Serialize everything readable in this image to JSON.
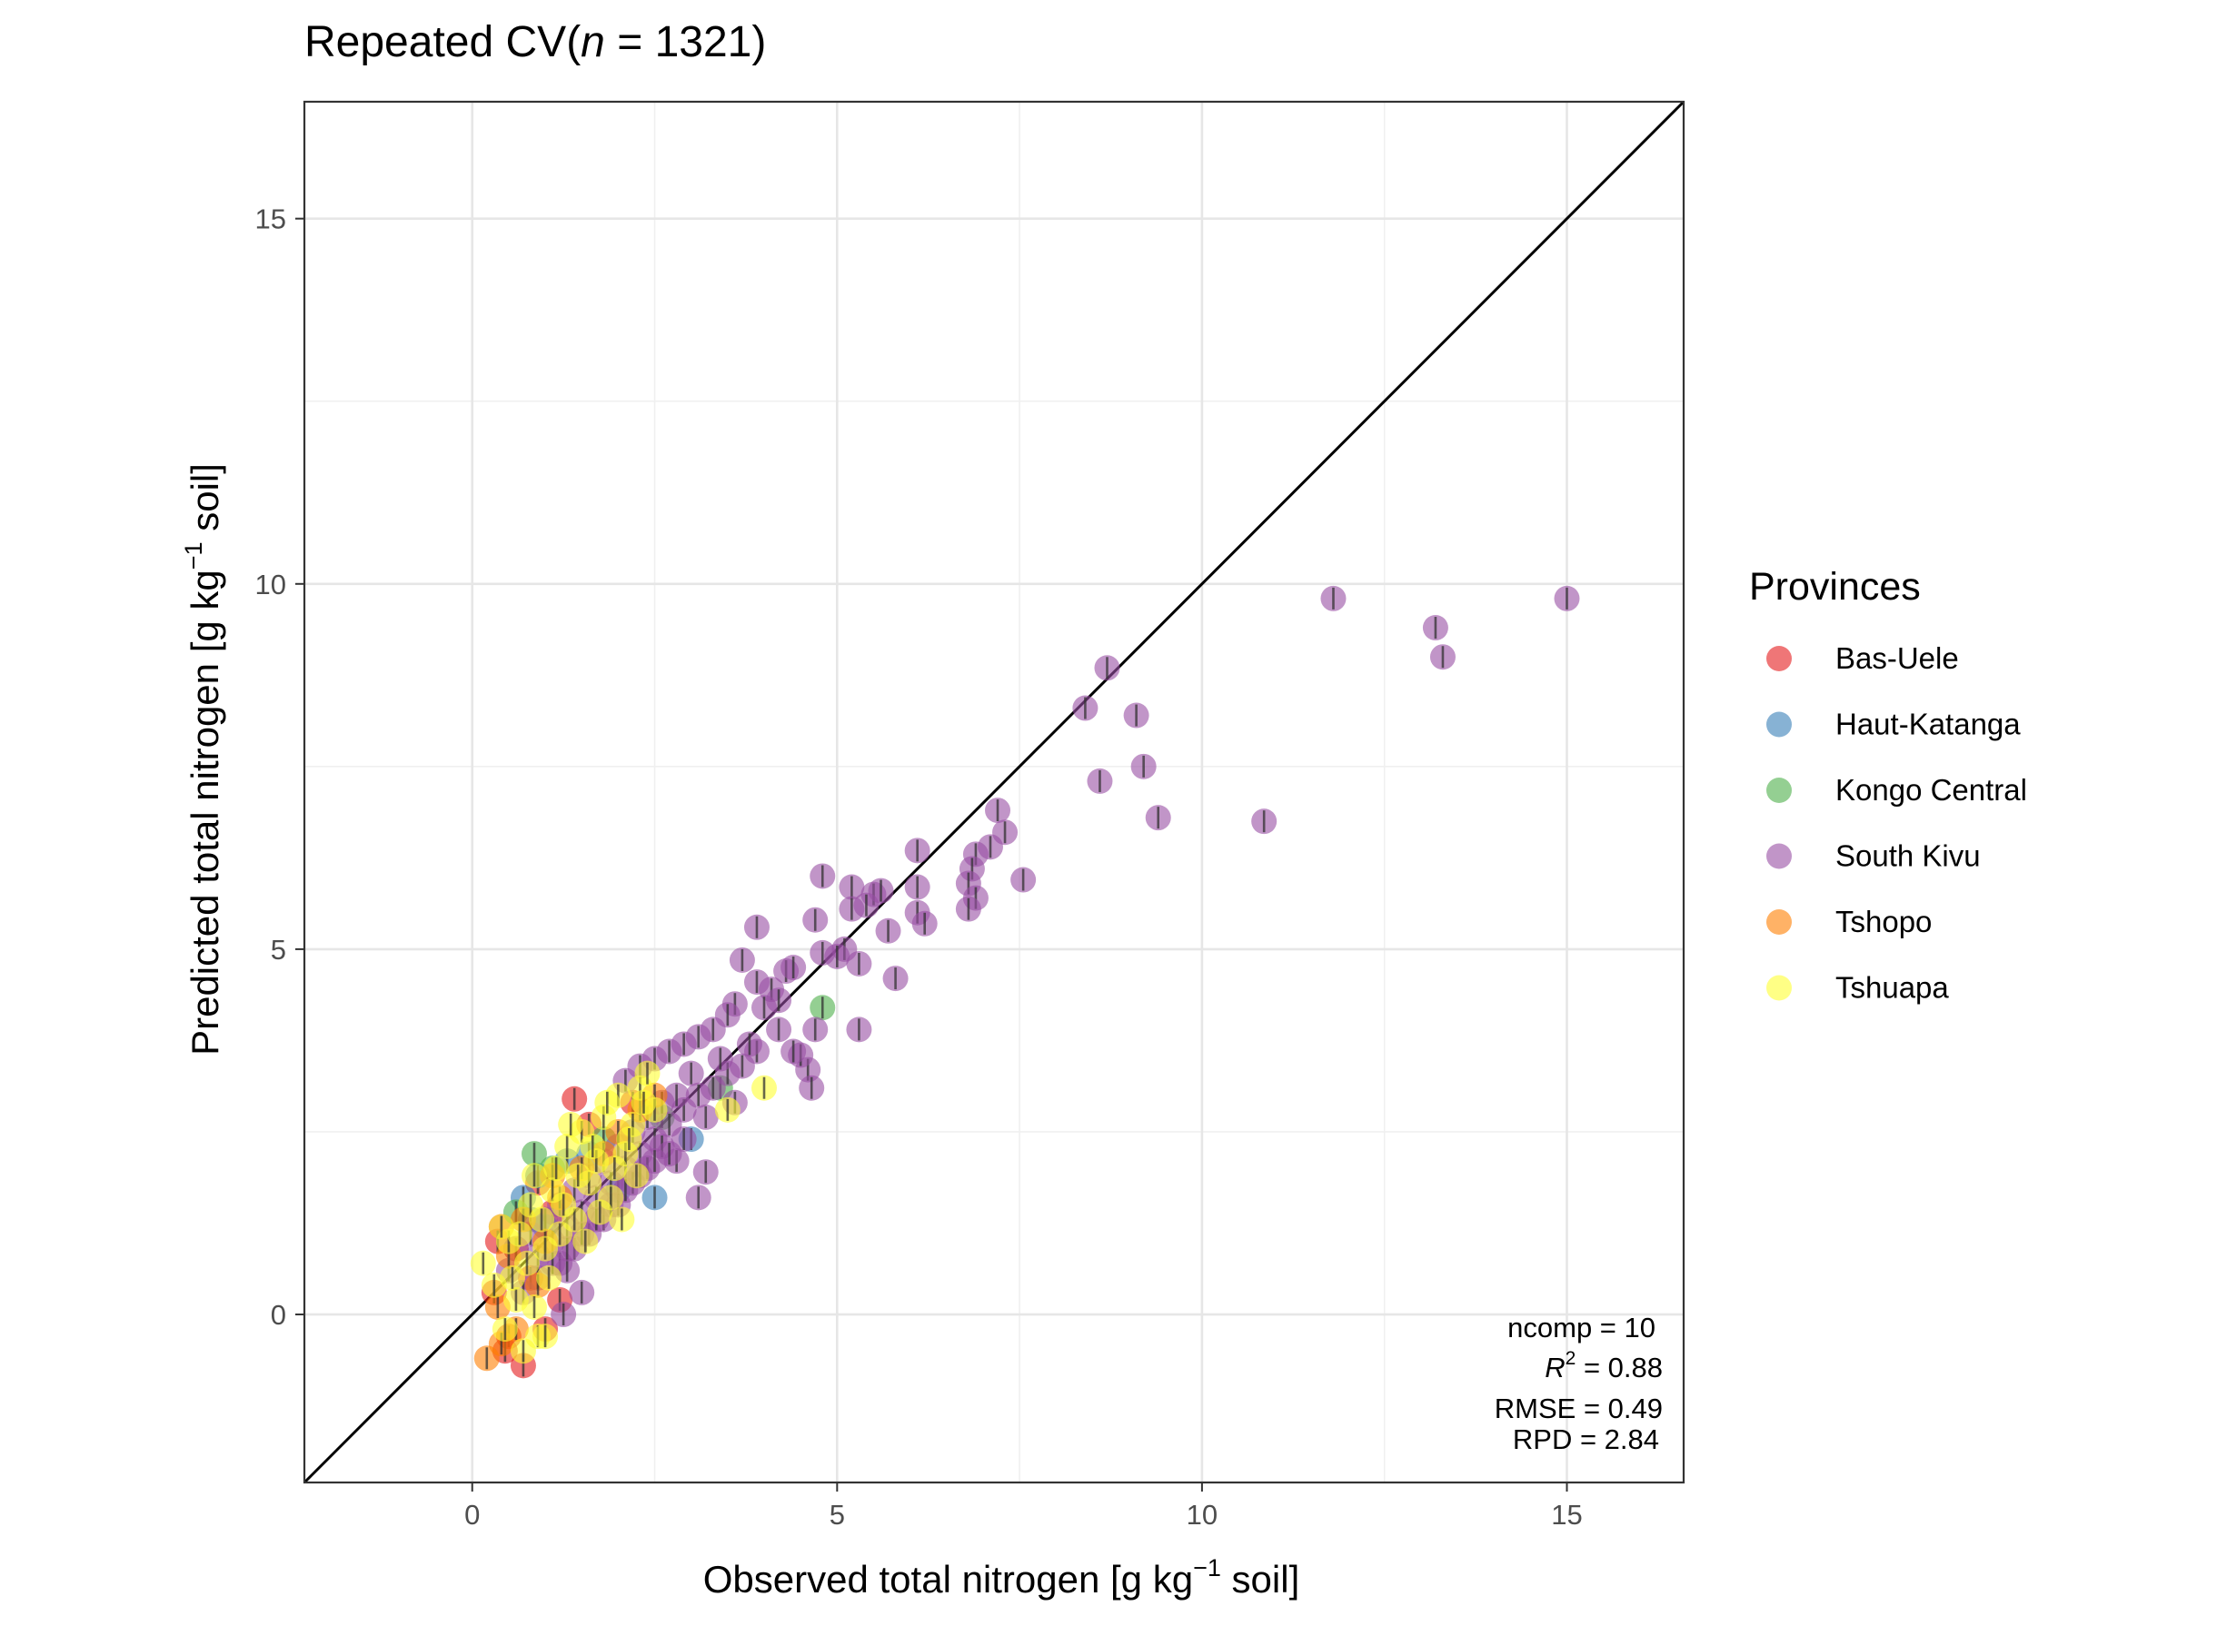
{
  "chart_data": {
    "type": "scatter",
    "title": "Repeated CV",
    "title_suffix_italic": "n",
    "title_suffix_rest": " = 1321)",
    "xlabel_pre": "Observed total nitrogen [g kg",
    "xlabel_sup": "−1",
    "xlabel_post": " soil]",
    "ylabel_pre": "Predicted total nitrogen [g kg",
    "ylabel_sup": "−1",
    "ylabel_post": " soil]",
    "xlim": [
      -2.3,
      16.6
    ],
    "ylim": [
      -2.3,
      16.6
    ],
    "x_ticks": [
      0,
      5,
      10,
      15
    ],
    "y_ticks": [
      0,
      5,
      10,
      15
    ],
    "x_tick_labels": [
      "0",
      "5",
      "10",
      "15"
    ],
    "y_tick_labels": [
      "0",
      "5",
      "10",
      "15"
    ],
    "grid": true,
    "reference_line": "y = x",
    "legend_title": "Provinces",
    "legend_position": "right",
    "stats": {
      "ncomp": "ncomp = 10",
      "r2_label": "R",
      "r2_sup": "2",
      "r2_value": " = 0.88",
      "rmse": "RMSE = 0.49",
      "rpd": "RPD = 2.84"
    },
    "series": [
      {
        "name": "Bas-Uele",
        "color": "#E41A1C",
        "points": [
          [
            1.4,
            2.95
          ],
          [
            0.7,
            -0.7
          ],
          [
            0.4,
            1.2
          ],
          [
            0.3,
            0.3
          ],
          [
            0.5,
            -0.3
          ],
          [
            0.9,
            1.8
          ],
          [
            1.2,
            0.2
          ],
          [
            2.2,
            2.9
          ],
          [
            0.6,
            0.9
          ],
          [
            1.0,
            -0.2
          ],
          [
            0.35,
            1.0
          ],
          [
            0.8,
            0.5
          ],
          [
            1.6,
            2.6
          ],
          [
            0.45,
            -0.5
          ],
          [
            1.1,
            1.4
          ]
        ]
      },
      {
        "name": "Haut-Katanga",
        "color": "#377EB8",
        "points": [
          [
            0.7,
            1.6
          ],
          [
            2.5,
            1.6
          ],
          [
            1.0,
            1.2
          ],
          [
            0.9,
            1.9
          ],
          [
            1.3,
            2.1
          ],
          [
            2.0,
            1.7
          ],
          [
            3.0,
            2.4
          ],
          [
            1.6,
            2.2
          ],
          [
            0.8,
            1.3
          ]
        ]
      },
      {
        "name": "Kongo Central",
        "color": "#4DAF4A",
        "points": [
          [
            0.85,
            2.2
          ],
          [
            3.4,
            3.1
          ],
          [
            4.8,
            4.2
          ],
          [
            1.1,
            2.0
          ],
          [
            1.8,
            2.4
          ],
          [
            0.6,
            1.4
          ],
          [
            2.6,
            2.7
          ]
        ]
      },
      {
        "name": "South Kivu",
        "color": "#984EA3",
        "points": [
          [
            15.0,
            9.8
          ],
          [
            11.8,
            9.8
          ],
          [
            13.2,
            9.4
          ],
          [
            13.3,
            9.0
          ],
          [
            8.7,
            8.85
          ],
          [
            9.1,
            8.2
          ],
          [
            8.4,
            8.3
          ],
          [
            8.6,
            7.3
          ],
          [
            9.2,
            7.5
          ],
          [
            9.4,
            6.8
          ],
          [
            10.85,
            6.75
          ],
          [
            7.2,
            6.9
          ],
          [
            7.3,
            6.6
          ],
          [
            7.1,
            6.4
          ],
          [
            6.9,
            6.3
          ],
          [
            6.85,
            6.1
          ],
          [
            7.55,
            5.95
          ],
          [
            6.8,
            5.9
          ],
          [
            6.1,
            6.35
          ],
          [
            4.8,
            6.0
          ],
          [
            5.2,
            5.85
          ],
          [
            5.5,
            5.75
          ],
          [
            5.6,
            5.8
          ],
          [
            5.4,
            5.6
          ],
          [
            5.2,
            5.55
          ],
          [
            6.1,
            5.85
          ],
          [
            6.1,
            5.5
          ],
          [
            6.2,
            5.35
          ],
          [
            5.7,
            5.25
          ],
          [
            4.7,
            5.4
          ],
          [
            3.9,
            5.3
          ],
          [
            6.9,
            5.7
          ],
          [
            6.8,
            5.55
          ],
          [
            5.8,
            4.6
          ],
          [
            5.3,
            4.8
          ],
          [
            5.1,
            5.0
          ],
          [
            4.8,
            4.95
          ],
          [
            5.0,
            4.9
          ],
          [
            3.7,
            4.85
          ],
          [
            3.9,
            4.55
          ],
          [
            4.1,
            4.45
          ],
          [
            4.3,
            4.7
          ],
          [
            4.4,
            4.75
          ],
          [
            4.2,
            4.3
          ],
          [
            4.0,
            4.2
          ],
          [
            4.7,
            3.9
          ],
          [
            5.3,
            3.9
          ],
          [
            3.6,
            4.25
          ],
          [
            3.5,
            4.1
          ],
          [
            3.3,
            3.9
          ],
          [
            3.1,
            3.8
          ],
          [
            2.9,
            3.7
          ],
          [
            2.7,
            3.6
          ],
          [
            2.5,
            3.5
          ],
          [
            2.3,
            3.4
          ],
          [
            2.1,
            3.2
          ],
          [
            4.6,
            3.35
          ],
          [
            4.5,
            3.55
          ],
          [
            4.65,
            3.1
          ],
          [
            3.9,
            3.6
          ],
          [
            3.7,
            3.4
          ],
          [
            3.5,
            3.3
          ],
          [
            3.3,
            3.1
          ],
          [
            3.1,
            3.0
          ],
          [
            2.9,
            2.8
          ],
          [
            2.7,
            2.6
          ],
          [
            2.5,
            2.4
          ],
          [
            2.3,
            2.2
          ],
          [
            2.1,
            2.0
          ],
          [
            1.9,
            1.8
          ],
          [
            1.7,
            1.6
          ],
          [
            1.5,
            1.4
          ],
          [
            1.3,
            1.2
          ],
          [
            1.1,
            1.0
          ],
          [
            0.9,
            0.8
          ],
          [
            3.2,
            1.95
          ],
          [
            3.1,
            1.6
          ],
          [
            2.8,
            2.1
          ],
          [
            2.6,
            2.3
          ],
          [
            2.4,
            2.0
          ],
          [
            2.2,
            1.8
          ],
          [
            2.0,
            1.5
          ],
          [
            1.8,
            1.3
          ],
          [
            1.6,
            1.1
          ],
          [
            1.4,
            0.9
          ],
          [
            1.2,
            0.7
          ],
          [
            1.5,
            0.3
          ],
          [
            1.3,
            0.6
          ],
          [
            1.25,
            0.0
          ],
          [
            3.0,
            3.3
          ],
          [
            3.4,
            3.5
          ],
          [
            3.8,
            3.7
          ],
          [
            4.2,
            3.9
          ],
          [
            4.4,
            3.6
          ],
          [
            2.8,
            3.0
          ],
          [
            2.6,
            2.9
          ],
          [
            2.4,
            2.7
          ],
          [
            2.2,
            2.5
          ],
          [
            2.0,
            2.3
          ],
          [
            1.8,
            2.1
          ],
          [
            1.6,
            1.9
          ],
          [
            1.4,
            1.7
          ],
          [
            1.2,
            1.5
          ],
          [
            1.0,
            1.3
          ],
          [
            0.8,
            1.1
          ],
          [
            0.6,
            0.9
          ],
          [
            0.5,
            0.6
          ],
          [
            3.6,
            2.9
          ],
          [
            3.2,
            2.7
          ],
          [
            2.9,
            2.4
          ],
          [
            2.7,
            2.2
          ],
          [
            2.5,
            2.1
          ],
          [
            2.3,
            1.9
          ],
          [
            2.1,
            1.7
          ],
          [
            1.9,
            1.5
          ],
          [
            1.7,
            1.3
          ],
          [
            1.5,
            1.1
          ],
          [
            1.3,
            0.9
          ],
          [
            1.1,
            0.7
          ],
          [
            0.9,
            0.5
          ],
          [
            0.7,
            0.3
          ]
        ]
      },
      {
        "name": "Tshopo",
        "color": "#FF7F00",
        "points": [
          [
            0.2,
            -0.6
          ],
          [
            0.35,
            0.1
          ],
          [
            0.5,
            0.8
          ],
          [
            0.7,
            1.3
          ],
          [
            1.0,
            1.0
          ],
          [
            1.2,
            1.6
          ],
          [
            1.5,
            2.0
          ],
          [
            2.0,
            2.5
          ],
          [
            2.5,
            3.0
          ],
          [
            0.6,
            -0.2
          ],
          [
            0.4,
            -0.4
          ],
          [
            0.9,
            0.4
          ],
          [
            1.8,
            2.2
          ],
          [
            2.3,
            2.8
          ],
          [
            1.1,
            1.9
          ]
        ]
      },
      {
        "name": "Tshuapa",
        "color": "#FFFF33",
        "points": [
          [
            0.15,
            0.7
          ],
          [
            0.3,
            0.4
          ],
          [
            0.5,
            1.0
          ],
          [
            0.6,
            0.2
          ],
          [
            0.8,
            1.5
          ],
          [
            0.9,
            -0.3
          ],
          [
            1.0,
            0.9
          ],
          [
            1.1,
            1.7
          ],
          [
            1.2,
            1.1
          ],
          [
            1.3,
            2.3
          ],
          [
            1.4,
            1.3
          ],
          [
            1.5,
            2.5
          ],
          [
            1.6,
            1.8
          ],
          [
            1.7,
            2.1
          ],
          [
            1.8,
            2.7
          ],
          [
            1.9,
            1.6
          ],
          [
            2.0,
            3.0
          ],
          [
            2.1,
            2.2
          ],
          [
            2.2,
            2.6
          ],
          [
            2.3,
            3.1
          ],
          [
            2.4,
            3.3
          ],
          [
            2.5,
            2.8
          ],
          [
            3.5,
            2.8
          ],
          [
            4.0,
            3.1
          ],
          [
            0.4,
            1.2
          ],
          [
            0.55,
            0.5
          ],
          [
            0.65,
            1.1
          ],
          [
            0.75,
            0.7
          ],
          [
            0.85,
            1.9
          ],
          [
            0.95,
            1.3
          ],
          [
            1.05,
            0.5
          ],
          [
            1.15,
            2.0
          ],
          [
            1.25,
            1.5
          ],
          [
            1.35,
            2.6
          ],
          [
            1.45,
            1.9
          ],
          [
            1.55,
            1.0
          ],
          [
            1.65,
            2.3
          ],
          [
            1.75,
            1.4
          ],
          [
            1.85,
            2.9
          ],
          [
            1.95,
            2.0
          ],
          [
            2.05,
            1.3
          ],
          [
            2.15,
            2.4
          ],
          [
            2.25,
            1.9
          ],
          [
            2.35,
            2.9
          ],
          [
            0.45,
            -0.2
          ],
          [
            0.7,
            -0.5
          ],
          [
            0.85,
            0.1
          ],
          [
            1.0,
            -0.3
          ]
        ]
      }
    ]
  }
}
